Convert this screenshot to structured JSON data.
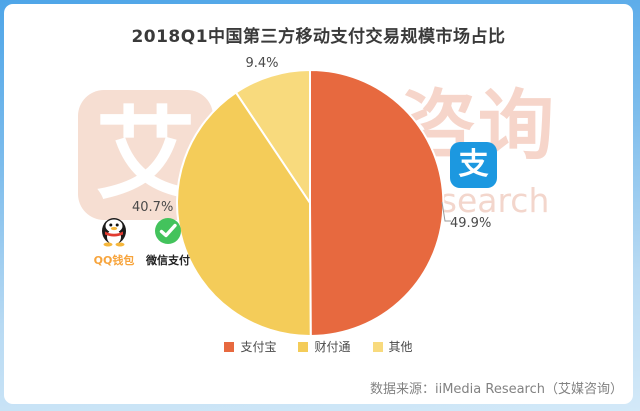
{
  "title": "2018Q1中国第三方移动支付交易规模市场占比",
  "chart_data": {
    "type": "pie",
    "title": "2018Q1中国第三方移动支付交易规模市场占比",
    "slices": [
      {
        "name": "支付宝",
        "value": 49.9,
        "label": "49.9%",
        "color": "#e7693f"
      },
      {
        "name": "财付通",
        "value": 40.7,
        "label": "40.7%",
        "color": "#f4cc59"
      },
      {
        "name": "其他",
        "value": 9.4,
        "label": "9.4%",
        "color": "#f8da7d"
      }
    ],
    "start_angle": "12-o-clock",
    "direction": "clockwise",
    "legend_position": "bottom",
    "slice_stroke_color": "#ffffff"
  },
  "brands": {
    "alipay_badge_char": "支",
    "qq_wallet_label": "QQ钱包",
    "wechat_pay_label": "微信支付"
  },
  "watermark": {
    "logo_char": "艾",
    "text_cn": "咨询",
    "text_en": "Research"
  },
  "source": "数据来源：iiMedia Research（艾媒咨询）",
  "colors": {
    "frame_blue_top": "#4ea5e8",
    "frame_blue_bottom": "#d3e9f8",
    "title_text": "#3a3a3a",
    "label_text": "#4a4a4a",
    "source_text": "#828282",
    "watermark_salmon": "#f6d5ca",
    "alipay_blue": "#1c98e0",
    "wechat_green": "#43c35c",
    "qq_caption_orange": "#f7a43c",
    "leader_line": "#9a9a9a"
  }
}
